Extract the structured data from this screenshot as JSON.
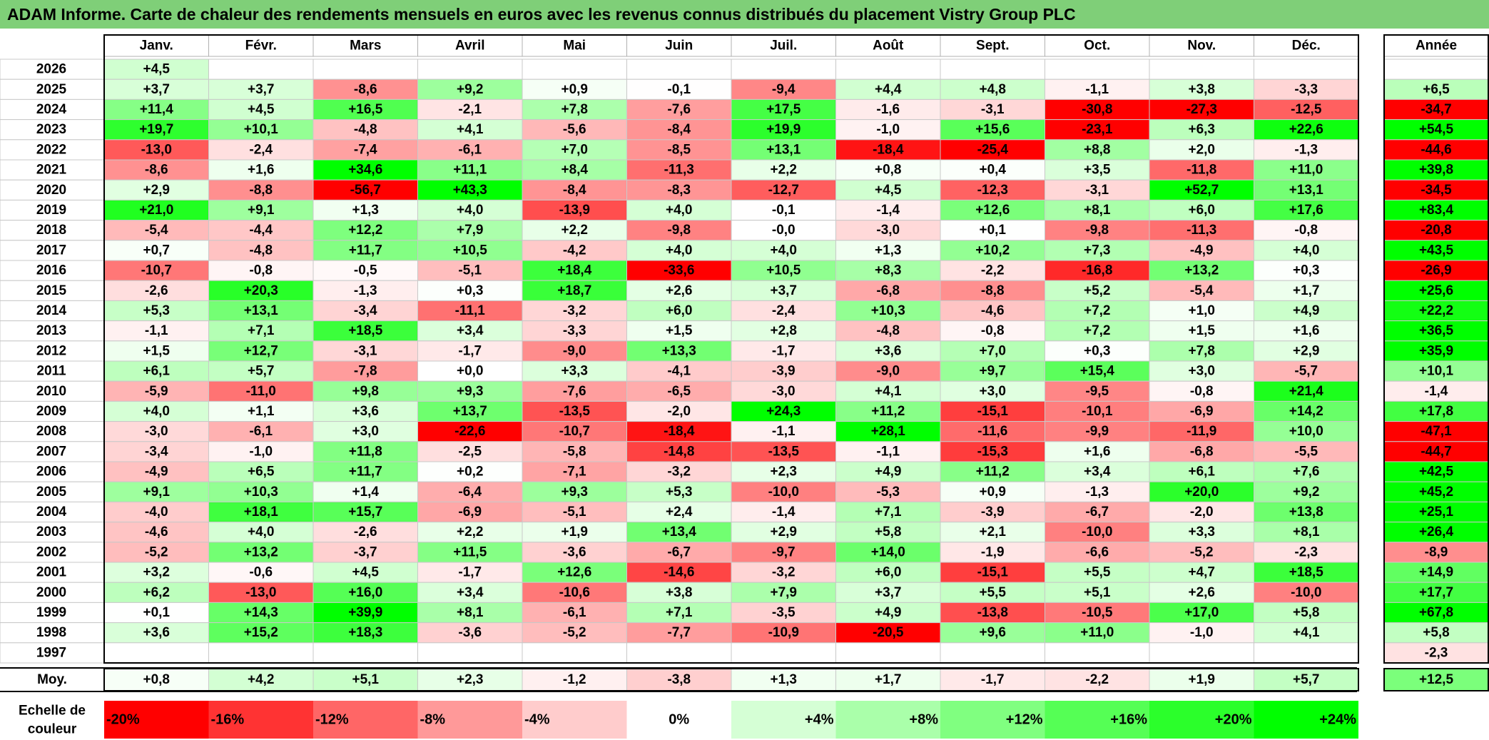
{
  "title": "ADAM Informe. Carte de chaleur des rendements mensuels en euros avec les revenus connus distribués du placement Vistry Group PLC",
  "chart_data": {
    "type": "heatmap",
    "months": [
      "Janv.",
      "Févr.",
      "Mars",
      "Avril",
      "Mai",
      "Juin",
      "Juil.",
      "Août",
      "Sept.",
      "Oct.",
      "Nov.",
      "Déc."
    ],
    "year_header": "Année",
    "avg_label": "Moy.",
    "scale_label_line1": "Echelle de",
    "scale_label_line2": "couleur",
    "rows": [
      {
        "year": "2026",
        "months": [
          "+4,5",
          "",
          "",
          "",
          "",
          "",
          "",
          "",
          "",
          "",
          "",
          ""
        ],
        "annual": ""
      },
      {
        "year": "2025",
        "months": [
          "+3,7",
          "+3,7",
          "-8,6",
          "+9,2",
          "+0,9",
          "-0,1",
          "-9,4",
          "+4,4",
          "+4,8",
          "-1,1",
          "+3,8",
          "-3,3"
        ],
        "annual": "+6,5"
      },
      {
        "year": "2024",
        "months": [
          "+11,4",
          "+4,5",
          "+16,5",
          "-2,1",
          "+7,8",
          "-7,6",
          "+17,5",
          "-1,6",
          "-3,1",
          "-30,8",
          "-27,3",
          "-12,5"
        ],
        "annual": "-34,7"
      },
      {
        "year": "2023",
        "months": [
          "+19,7",
          "+10,1",
          "-4,8",
          "+4,1",
          "-5,6",
          "-8,4",
          "+19,9",
          "-1,0",
          "+15,6",
          "-23,1",
          "+6,3",
          "+22,6"
        ],
        "annual": "+54,5"
      },
      {
        "year": "2022",
        "months": [
          "-13,0",
          "-2,4",
          "-7,4",
          "-6,1",
          "+7,0",
          "-8,5",
          "+13,1",
          "-18,4",
          "-25,4",
          "+8,8",
          "+2,0",
          "-1,3"
        ],
        "annual": "-44,6"
      },
      {
        "year": "2021",
        "months": [
          "-8,6",
          "+1,6",
          "+34,6",
          "+11,1",
          "+8,4",
          "-11,3",
          "+2,2",
          "+0,8",
          "+0,4",
          "+3,5",
          "-11,8",
          "+11,0"
        ],
        "annual": "+39,8"
      },
      {
        "year": "2020",
        "months": [
          "+2,9",
          "-8,8",
          "-56,7",
          "+43,3",
          "-8,4",
          "-8,3",
          "-12,7",
          "+4,5",
          "-12,3",
          "-3,1",
          "+52,7",
          "+13,1"
        ],
        "annual": "-34,5"
      },
      {
        "year": "2019",
        "months": [
          "+21,0",
          "+9,1",
          "+1,3",
          "+4,0",
          "-13,9",
          "+4,0",
          "-0,1",
          "-1,4",
          "+12,6",
          "+8,1",
          "+6,0",
          "+17,6"
        ],
        "annual": "+83,4"
      },
      {
        "year": "2018",
        "months": [
          "-5,4",
          "-4,4",
          "+12,2",
          "+7,9",
          "+2,2",
          "-9,8",
          "-0,0",
          "-3,0",
          "+0,1",
          "-9,8",
          "-11,3",
          "-0,8"
        ],
        "annual": "-20,8"
      },
      {
        "year": "2017",
        "months": [
          "+0,7",
          "-4,8",
          "+11,7",
          "+10,5",
          "-4,2",
          "+4,0",
          "+4,0",
          "+1,3",
          "+10,2",
          "+7,3",
          "-4,9",
          "+4,0"
        ],
        "annual": "+43,5"
      },
      {
        "year": "2016",
        "months": [
          "-10,7",
          "-0,8",
          "-0,5",
          "-5,1",
          "+18,4",
          "-33,6",
          "+10,5",
          "+8,3",
          "-2,2",
          "-16,8",
          "+13,2",
          "+0,3"
        ],
        "annual": "-26,9"
      },
      {
        "year": "2015",
        "months": [
          "-2,6",
          "+20,3",
          "-1,3",
          "+0,3",
          "+18,7",
          "+2,6",
          "+3,7",
          "-6,8",
          "-8,8",
          "+5,2",
          "-5,4",
          "+1,7"
        ],
        "annual": "+25,6"
      },
      {
        "year": "2014",
        "months": [
          "+5,3",
          "+13,1",
          "-3,4",
          "-11,1",
          "-3,2",
          "+6,0",
          "-2,4",
          "+10,3",
          "-4,6",
          "+7,2",
          "+1,0",
          "+4,9"
        ],
        "annual": "+22,2"
      },
      {
        "year": "2013",
        "months": [
          "-1,1",
          "+7,1",
          "+18,5",
          "+3,4",
          "-3,3",
          "+1,5",
          "+2,8",
          "-4,8",
          "-0,8",
          "+7,2",
          "+1,5",
          "+1,6"
        ],
        "annual": "+36,5"
      },
      {
        "year": "2012",
        "months": [
          "+1,5",
          "+12,7",
          "-3,1",
          "-1,7",
          "-9,0",
          "+13,3",
          "-1,7",
          "+3,6",
          "+7,0",
          "+0,3",
          "+7,8",
          "+2,9"
        ],
        "annual": "+35,9"
      },
      {
        "year": "2011",
        "months": [
          "+6,1",
          "+5,7",
          "-7,8",
          "+0,0",
          "+3,3",
          "-4,1",
          "-3,9",
          "-9,0",
          "+9,7",
          "+15,4",
          "+3,0",
          "-5,7"
        ],
        "annual": "+10,1"
      },
      {
        "year": "2010",
        "months": [
          "-5,9",
          "-11,0",
          "+9,8",
          "+9,3",
          "-7,6",
          "-6,5",
          "-3,0",
          "+4,1",
          "+3,0",
          "-9,5",
          "-0,8",
          "+21,4"
        ],
        "annual": "-1,4"
      },
      {
        "year": "2009",
        "months": [
          "+4,0",
          "+1,1",
          "+3,6",
          "+13,7",
          "-13,5",
          "-2,0",
          "+24,3",
          "+11,2",
          "-15,1",
          "-10,1",
          "-6,9",
          "+14,2"
        ],
        "annual": "+17,8"
      },
      {
        "year": "2008",
        "months": [
          "-3,0",
          "-6,1",
          "+3,0",
          "-22,6",
          "-10,7",
          "-18,4",
          "-1,1",
          "+28,1",
          "-11,6",
          "-9,9",
          "-11,9",
          "+10,0"
        ],
        "annual": "-47,1"
      },
      {
        "year": "2007",
        "months": [
          "-3,4",
          "-1,0",
          "+11,8",
          "-2,5",
          "-5,8",
          "-14,8",
          "-13,5",
          "-1,1",
          "-15,3",
          "+1,6",
          "-6,8",
          "-5,5"
        ],
        "annual": "-44,7"
      },
      {
        "year": "2006",
        "months": [
          "-4,9",
          "+6,5",
          "+11,7",
          "+0,2",
          "-7,1",
          "-3,2",
          "+2,3",
          "+4,9",
          "+11,2",
          "+3,4",
          "+6,1",
          "+7,6"
        ],
        "annual": "+42,5"
      },
      {
        "year": "2005",
        "months": [
          "+9,1",
          "+10,3",
          "+1,4",
          "-6,4",
          "+9,3",
          "+5,3",
          "-10,0",
          "-5,3",
          "+0,9",
          "-1,3",
          "+20,0",
          "+9,2"
        ],
        "annual": "+45,2"
      },
      {
        "year": "2004",
        "months": [
          "-4,0",
          "+18,1",
          "+15,7",
          "-6,9",
          "-5,1",
          "+2,4",
          "-1,4",
          "+7,1",
          "-3,9",
          "-6,7",
          "-2,0",
          "+13,8"
        ],
        "annual": "+25,1"
      },
      {
        "year": "2003",
        "months": [
          "-4,6",
          "+4,0",
          "-2,6",
          "+2,2",
          "+1,9",
          "+13,4",
          "+2,9",
          "+5,8",
          "+2,1",
          "-10,0",
          "+3,3",
          "+8,1"
        ],
        "annual": "+26,4"
      },
      {
        "year": "2002",
        "months": [
          "-5,2",
          "+13,2",
          "-3,7",
          "+11,5",
          "-3,6",
          "-6,7",
          "-9,7",
          "+14,0",
          "-1,9",
          "-6,6",
          "-5,2",
          "-2,3"
        ],
        "annual": "-8,9"
      },
      {
        "year": "2001",
        "months": [
          "+3,2",
          "-0,6",
          "+4,5",
          "-1,7",
          "+12,6",
          "-14,6",
          "-3,2",
          "+6,0",
          "-15,1",
          "+5,5",
          "+4,7",
          "+18,5"
        ],
        "annual": "+14,9"
      },
      {
        "year": "2000",
        "months": [
          "+6,2",
          "-13,0",
          "+16,0",
          "+3,4",
          "-10,6",
          "+3,8",
          "+7,9",
          "+3,7",
          "+5,5",
          "+5,1",
          "+2,6",
          "-10,0"
        ],
        "annual": "+17,7"
      },
      {
        "year": "1999",
        "months": [
          "+0,1",
          "+14,3",
          "+39,9",
          "+8,1",
          "-6,1",
          "+7,1",
          "-3,5",
          "+4,9",
          "-13,8",
          "-10,5",
          "+17,0",
          "+5,8"
        ],
        "annual": "+67,8"
      },
      {
        "year": "1998",
        "months": [
          "+3,6",
          "+15,2",
          "+18,3",
          "-3,6",
          "-5,2",
          "-7,7",
          "-10,9",
          "-20,5",
          "+9,6",
          "+11,0",
          "-1,0",
          "+4,1"
        ],
        "annual": "+5,8"
      },
      {
        "year": "1997",
        "months": [
          "",
          "",
          "",
          "",
          "",
          "",
          "",
          "",
          "",
          "",
          "",
          ""
        ],
        "annual": "-2,3"
      }
    ],
    "averages": {
      "months": [
        "+0,8",
        "+4,2",
        "+5,1",
        "+2,3",
        "-1,2",
        "-3,8",
        "+1,3",
        "+1,7",
        "-1,7",
        "-2,2",
        "+1,9",
        "+5,7"
      ],
      "annual": "+12,5"
    },
    "scale": [
      {
        "label": "-20%",
        "value": -20,
        "color": "#ff0000"
      },
      {
        "label": "-16%",
        "value": -16,
        "color": "#ff3333"
      },
      {
        "label": "-12%",
        "value": -12,
        "color": "#ff6666"
      },
      {
        "label": "-8%",
        "value": -8,
        "color": "#ff9999"
      },
      {
        "label": "-4%",
        "value": -4,
        "color": "#ffcccc"
      },
      {
        "label": "0%",
        "value": 0,
        "color": "#ffffff"
      },
      {
        "label": "+4%",
        "value": 4,
        "color": "#d5ffd5"
      },
      {
        "label": "+8%",
        "value": 8,
        "color": "#aaffaa"
      },
      {
        "label": "+12%",
        "value": 12,
        "color": "#80ff80"
      },
      {
        "label": "+16%",
        "value": 16,
        "color": "#55ff55"
      },
      {
        "label": "+20%",
        "value": 20,
        "color": "#2bff2b"
      },
      {
        "label": "+24%",
        "value": 24,
        "color": "#00ff00"
      }
    ]
  }
}
